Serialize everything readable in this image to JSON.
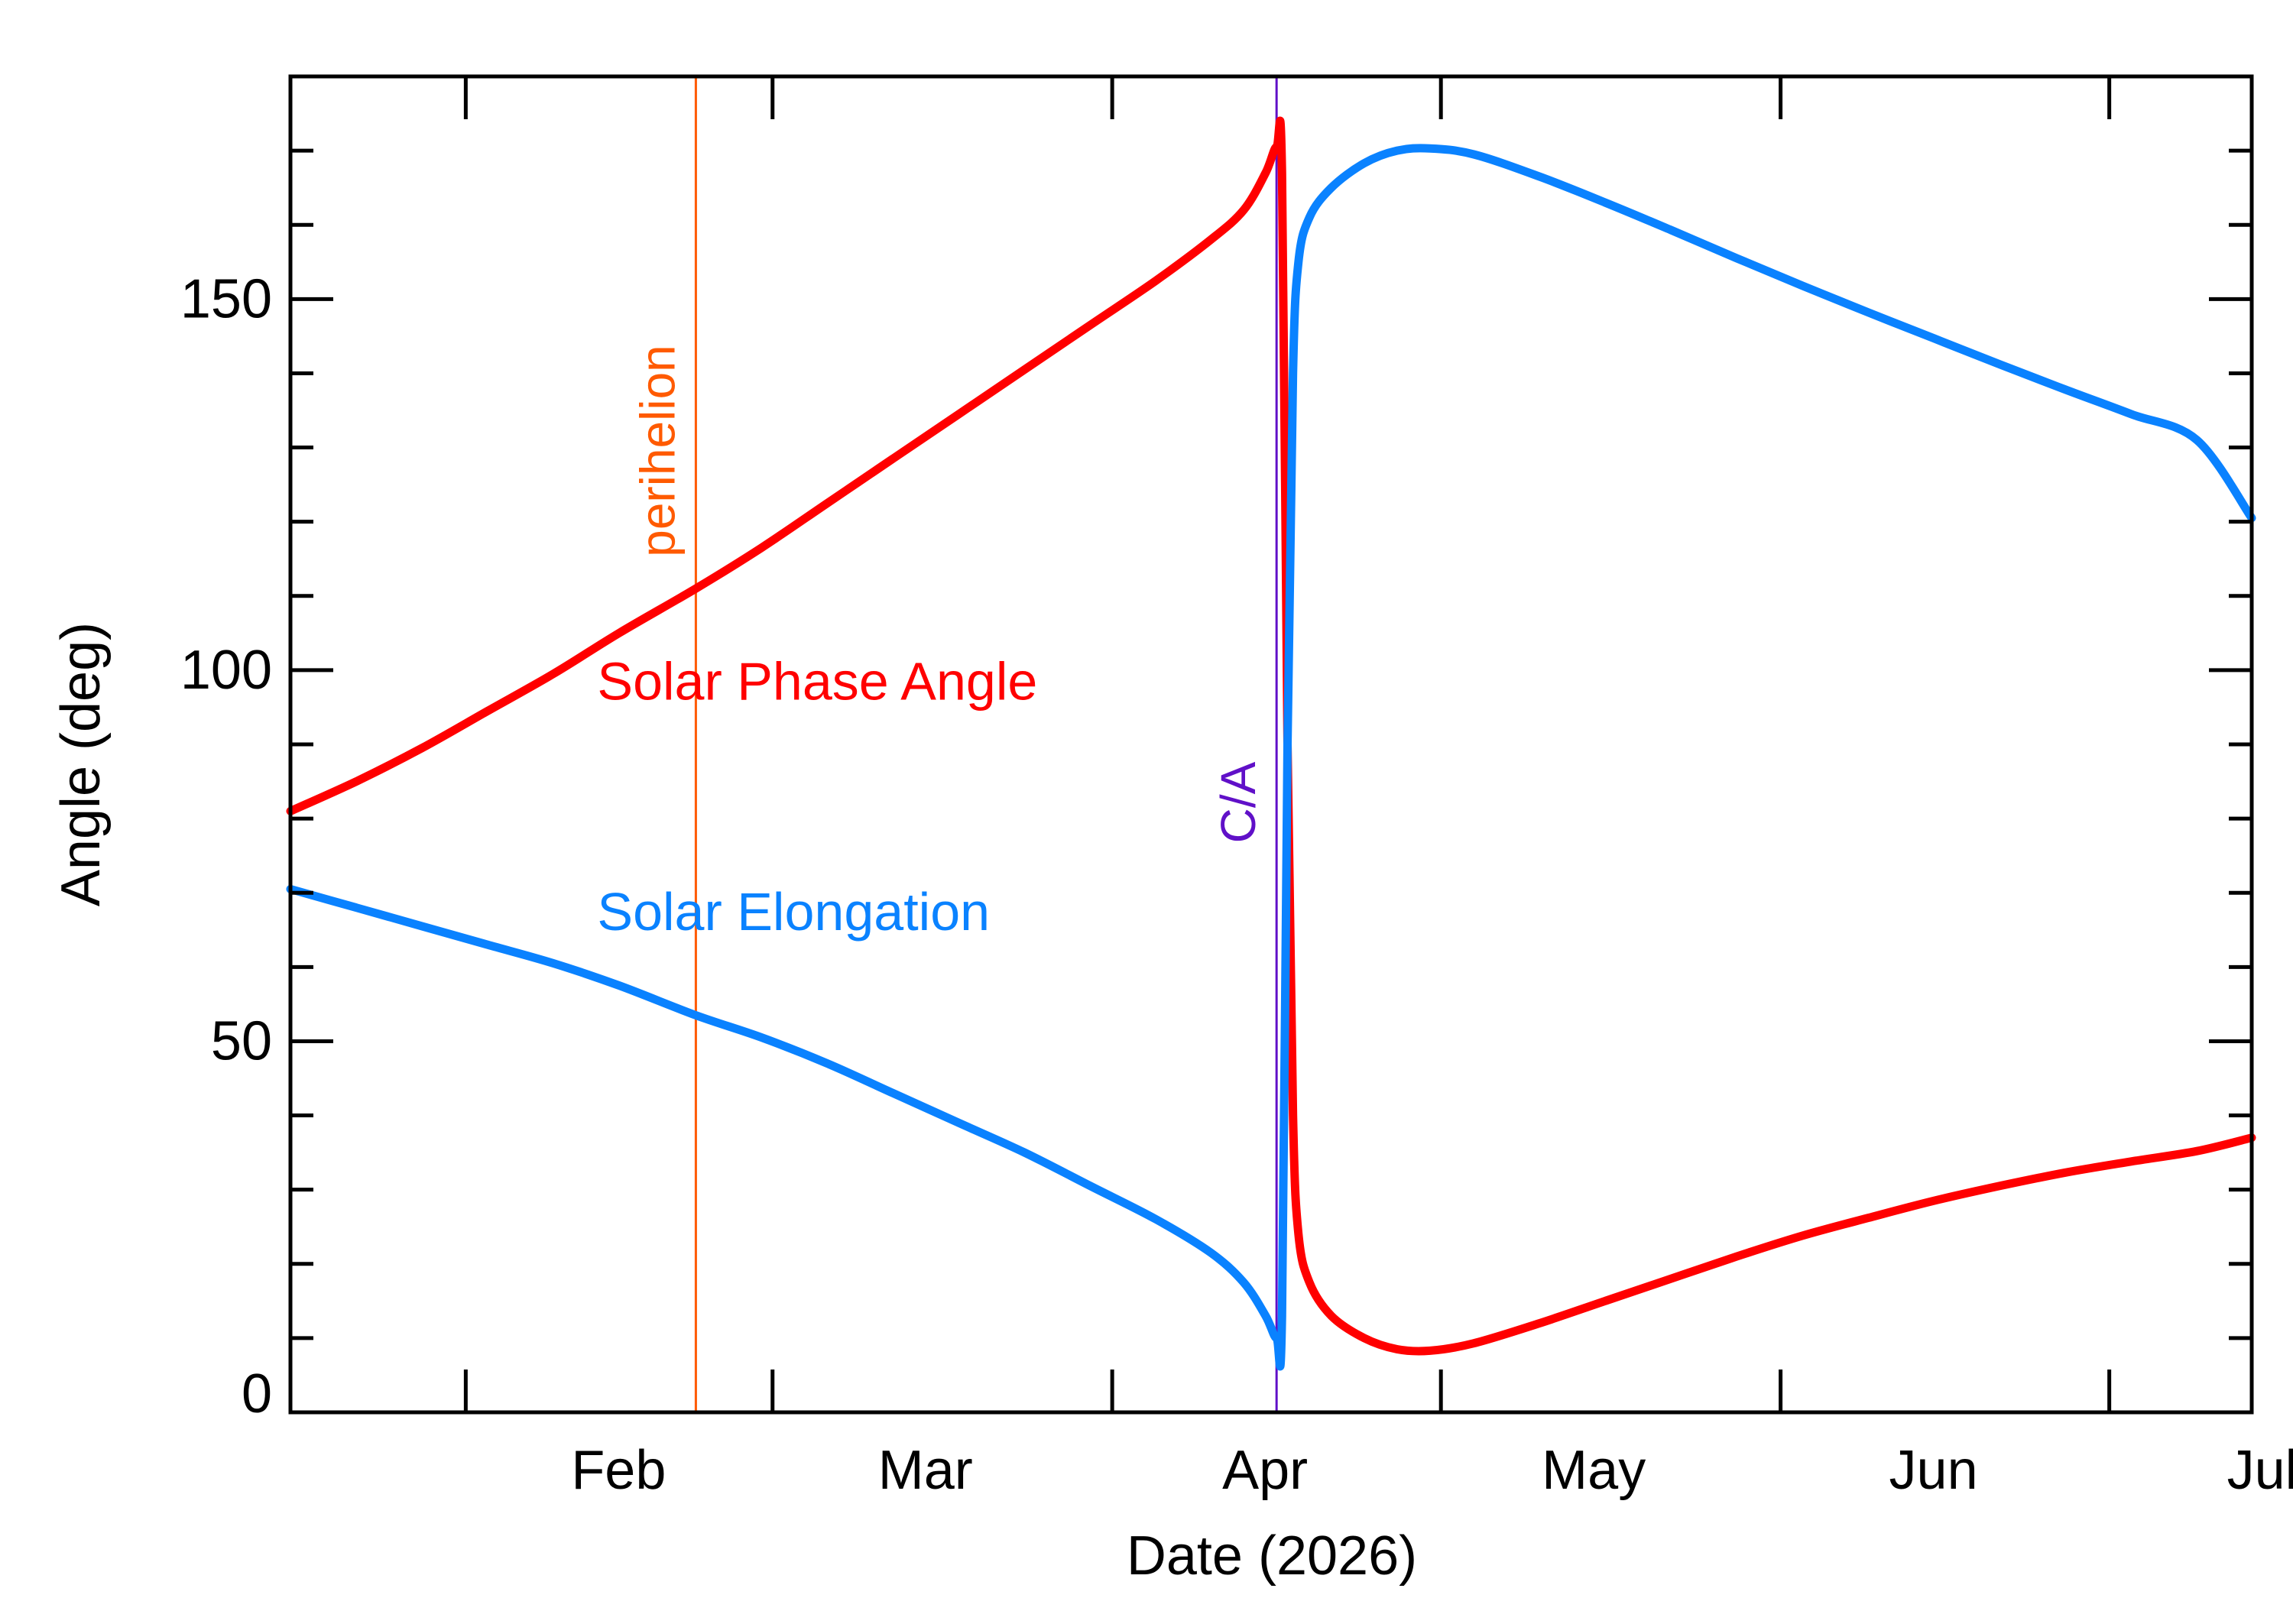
{
  "chart_data": {
    "type": "line",
    "xlabel": "Date (2026)",
    "ylabel": "Angle (deg)",
    "xlim": [
      "2026-01-16",
      "2026-07-14"
    ],
    "ylim": [
      0,
      180
    ],
    "x_tick_labels": [
      {
        "date": "2026-02-01",
        "label": "Feb"
      },
      {
        "date": "2026-03-01",
        "label": "Mar"
      },
      {
        "date": "2026-04-01",
        "label": "Apr"
      },
      {
        "date": "2026-05-01",
        "label": "May"
      },
      {
        "date": "2026-06-01",
        "label": "Jun"
      },
      {
        "date": "2026-07-01",
        "label": "Jul"
      }
    ],
    "y_tick_labels": [
      {
        "value": 0,
        "label": "0"
      },
      {
        "value": 50,
        "label": "50"
      },
      {
        "value": 100,
        "label": "100"
      },
      {
        "value": 150,
        "label": "150"
      }
    ],
    "vertical_lines": [
      {
        "date": "2026-02-22",
        "label": "perihelion",
        "color": "#ff5a00"
      },
      {
        "date": "2026-04-16",
        "label": "C/A",
        "color": "#6010c8"
      }
    ],
    "series": [
      {
        "name": "Solar Phase Angle",
        "color": "#ff0000",
        "points": [
          [
            "2026-01-16",
            81
          ],
          [
            "2026-01-22",
            85
          ],
          [
            "2026-01-28",
            89.5
          ],
          [
            "2026-02-03",
            94.5
          ],
          [
            "2026-02-09",
            99.5
          ],
          [
            "2026-02-15",
            105
          ],
          [
            "2026-02-22",
            111
          ],
          [
            "2026-02-28",
            116.5
          ],
          [
            "2026-03-06",
            122.5
          ],
          [
            "2026-03-12",
            128.5
          ],
          [
            "2026-03-18",
            134.5
          ],
          [
            "2026-03-24",
            140.5
          ],
          [
            "2026-03-30",
            146.5
          ],
          [
            "2026-04-05",
            152.5
          ],
          [
            "2026-04-10",
            158
          ],
          [
            "2026-04-13",
            162
          ],
          [
            "2026-04-15",
            167
          ],
          [
            "2026-04-16",
            170.5
          ],
          [
            "2026-04-16T12:00",
            167
          ],
          [
            "2026-04-17",
            90
          ],
          [
            "2026-04-17T12:00",
            40
          ],
          [
            "2026-04-18",
            24
          ],
          [
            "2026-04-19",
            17.5
          ],
          [
            "2026-04-21",
            13
          ],
          [
            "2026-04-24",
            10
          ],
          [
            "2026-04-27",
            8.5
          ],
          [
            "2026-04-30",
            8.3
          ],
          [
            "2026-05-04",
            9.3
          ],
          [
            "2026-05-10",
            12
          ],
          [
            "2026-05-16",
            15
          ],
          [
            "2026-05-22",
            18
          ],
          [
            "2026-05-28",
            21
          ],
          [
            "2026-06-03",
            23.8
          ],
          [
            "2026-06-09",
            26.2
          ],
          [
            "2026-06-15",
            28.5
          ],
          [
            "2026-06-21",
            30.5
          ],
          [
            "2026-06-27",
            32.3
          ],
          [
            "2026-07-03",
            33.8
          ],
          [
            "2026-07-09",
            35.2
          ],
          [
            "2026-07-14",
            37
          ]
        ]
      },
      {
        "name": "Solar Elongation",
        "color": "#0a82ff",
        "points": [
          [
            "2026-01-16",
            70.5
          ],
          [
            "2026-01-22",
            68
          ],
          [
            "2026-01-28",
            65.5
          ],
          [
            "2026-02-03",
            63
          ],
          [
            "2026-02-09",
            60.5
          ],
          [
            "2026-02-15",
            57.5
          ],
          [
            "2026-02-22",
            53.5
          ],
          [
            "2026-02-28",
            50.5
          ],
          [
            "2026-03-06",
            47
          ],
          [
            "2026-03-12",
            43
          ],
          [
            "2026-03-18",
            39
          ],
          [
            "2026-03-24",
            35
          ],
          [
            "2026-03-30",
            30.5
          ],
          [
            "2026-04-05",
            26
          ],
          [
            "2026-04-10",
            21.5
          ],
          [
            "2026-04-13",
            17.5
          ],
          [
            "2026-04-15",
            13
          ],
          [
            "2026-04-16",
            10
          ],
          [
            "2026-04-16T12:00",
            13
          ],
          [
            "2026-04-17",
            90
          ],
          [
            "2026-04-17T12:00",
            140
          ],
          [
            "2026-04-18",
            155
          ],
          [
            "2026-04-19",
            161
          ],
          [
            "2026-04-21",
            165
          ],
          [
            "2026-04-24",
            168.3
          ],
          [
            "2026-04-27",
            170
          ],
          [
            "2026-04-30",
            170.3
          ],
          [
            "2026-05-04",
            169.5
          ],
          [
            "2026-05-10",
            166.5
          ],
          [
            "2026-05-16",
            163
          ],
          [
            "2026-05-22",
            159.3
          ],
          [
            "2026-05-28",
            155.5
          ],
          [
            "2026-06-03",
            151.8
          ],
          [
            "2026-06-09",
            148.2
          ],
          [
            "2026-06-15",
            144.7
          ],
          [
            "2026-06-21",
            141.2
          ],
          [
            "2026-06-27",
            137.8
          ],
          [
            "2026-07-03",
            134.5
          ],
          [
            "2026-07-09",
            131
          ],
          [
            "2026-07-14",
            120.5
          ]
        ]
      }
    ],
    "series_labels": [
      {
        "series": 0,
        "text": "Solar Phase Angle",
        "date": "2026-02-13",
        "value": 96
      },
      {
        "series": 1,
        "text": "Solar Elongation",
        "date": "2026-02-13",
        "value": 65
      }
    ]
  }
}
